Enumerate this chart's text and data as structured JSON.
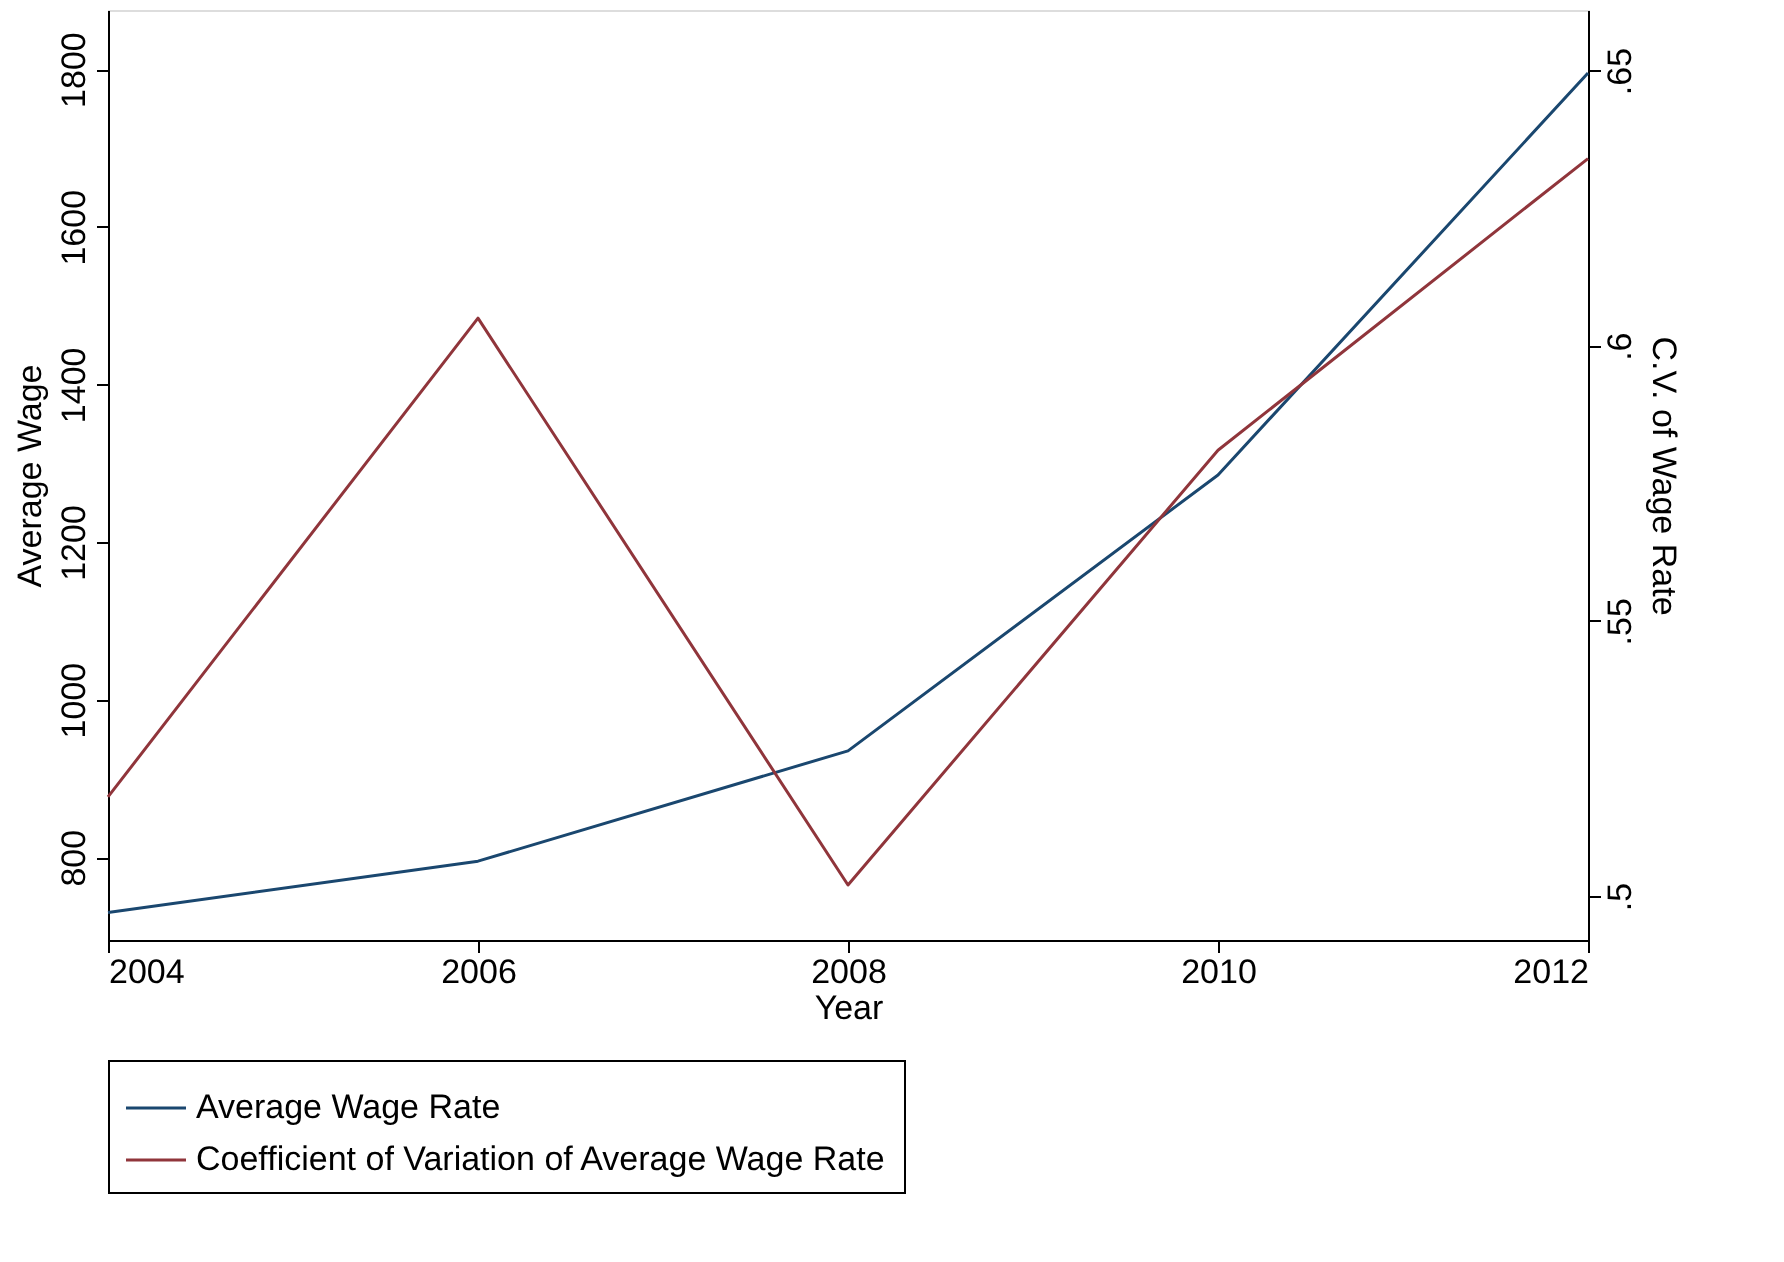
{
  "chart_data": {
    "type": "line",
    "xlabel": "Year",
    "ylabel": "Average Wage",
    "y2label": "C.V. of Wage Rate",
    "x": [
      2004,
      2006,
      2008,
      2010,
      2012
    ],
    "xlim": [
      2004,
      2012
    ],
    "xticks": [
      2004,
      2006,
      2008,
      2010,
      2012
    ],
    "ylim": [
      695,
      1875
    ],
    "yticks": [
      800,
      1000,
      1200,
      1400,
      1600,
      1800
    ],
    "y2lim": [
      0.492,
      0.661
    ],
    "y2ticks": [
      {
        "value": 0.5,
        "label": ".5"
      },
      {
        "value": 0.55,
        "label": ".55"
      },
      {
        "value": 0.6,
        "label": ".6"
      },
      {
        "value": 0.65,
        "label": ".65"
      }
    ],
    "series": [
      {
        "name": "Average Wage Rate",
        "color": "#1a476f",
        "values": [
          730,
          795,
          935,
          1285,
          1795
        ]
      },
      {
        "name": "Coefficient of Variation of Average Wage Rate",
        "color": "#90353b",
        "axis": "y2",
        "values": [
          0.518,
          0.605,
          0.502,
          0.581,
          0.634
        ]
      }
    ],
    "legend": "bottom",
    "grid": false,
    "marker": "none",
    "line_style": "solid"
  }
}
